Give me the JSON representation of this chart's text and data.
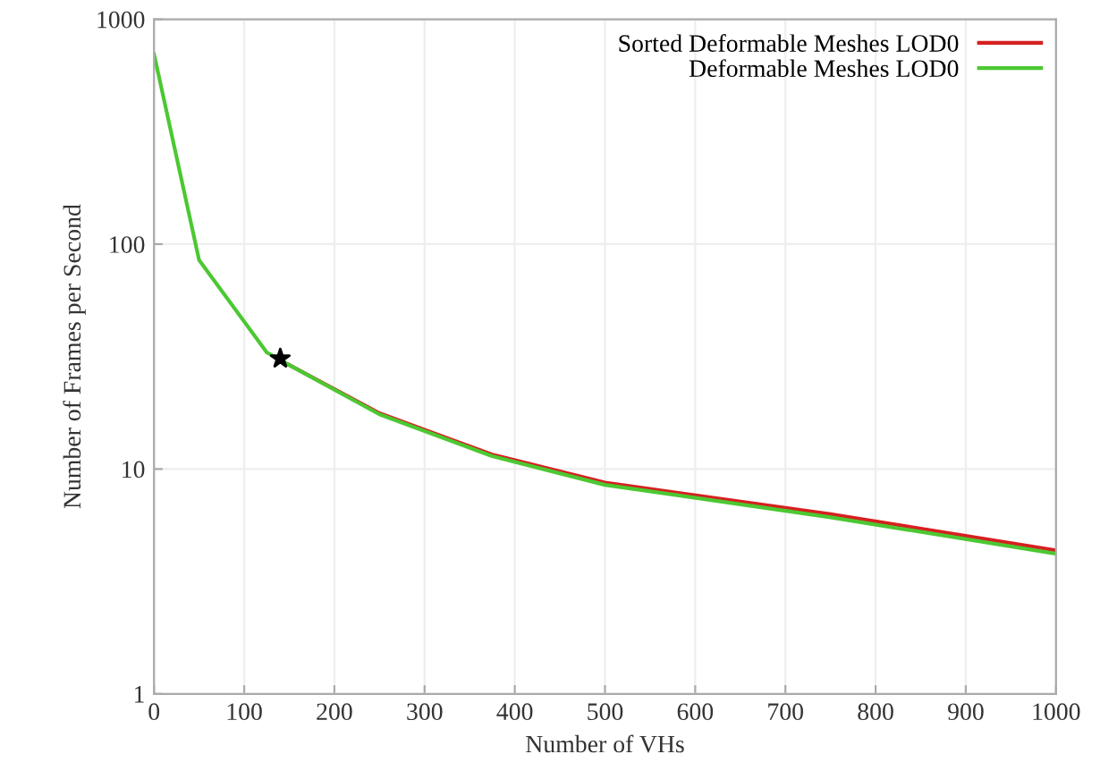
{
  "chart_data": {
    "type": "line",
    "xlabel": "Number of VHs",
    "ylabel": "Number of Frames per Second",
    "x": [
      0,
      50,
      125,
      150,
      250,
      375,
      500,
      750,
      1000
    ],
    "series": [
      {
        "name": "Sorted Deformable Meshes LOD0",
        "color": "#d62020",
        "values": [
          null,
          null,
          null,
          29,
          17.7,
          11.6,
          8.7,
          6.3,
          4.35
        ]
      },
      {
        "name": "Deformable Meshes LOD0",
        "color": "#4cc832",
        "values": [
          700,
          85,
          33,
          29,
          17.5,
          11.4,
          8.5,
          6.1,
          4.2
        ]
      },
      {
        "type": "scatter",
        "color": "#000000",
        "marker": "star",
        "x": [
          140
        ],
        "values": [
          31
        ]
      }
    ],
    "log": "y",
    "xlim": [
      0,
      1000
    ],
    "ylim": [
      1,
      1000
    ],
    "xticks": [
      0,
      100,
      200,
      300,
      400,
      500,
      600,
      700,
      800,
      900,
      1000
    ],
    "yticks": [
      1,
      10,
      100,
      1000
    ],
    "grid": true,
    "legend": "top right",
    "marker": "none",
    "line_style": "solid"
  }
}
